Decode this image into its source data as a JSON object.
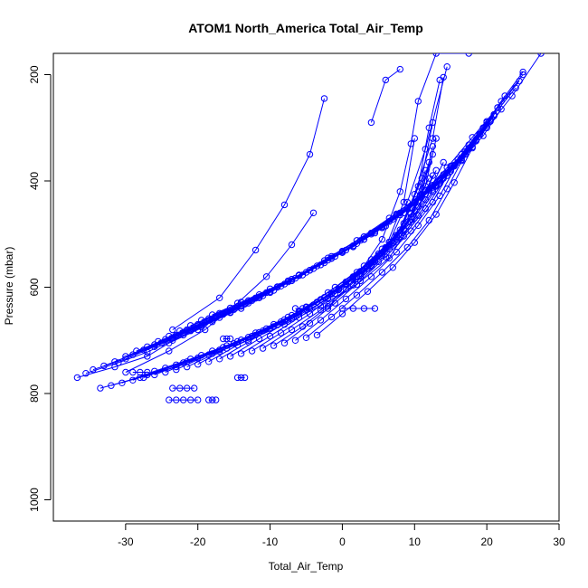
{
  "chart_data": {
    "type": "line",
    "title": "ATOM1 North_America Total_Air_Temp",
    "xlabel": "Total_Air_Temp",
    "ylabel": "Pressure (mbar)",
    "xlim": [
      -40,
      30
    ],
    "ylim": [
      1040,
      160
    ],
    "y_reversed": true,
    "x_ticks": [
      -30,
      -20,
      -10,
      0,
      10,
      20,
      30
    ],
    "y_ticks": [
      200,
      400,
      600,
      800,
      1000
    ],
    "grid": false,
    "legend": "none",
    "series_color": "#0000ff",
    "marker": "open-circle",
    "series": [
      {
        "x": [
          -36.7,
          -31.5,
          -27,
          -24,
          -20,
          -16.5,
          -12,
          -7,
          -2,
          3,
          8,
          13,
          16.5,
          20,
          23.5,
          27.5
        ],
        "y": [
          770,
          750,
          730,
          705,
          680,
          650,
          620,
          585,
          545,
          505,
          460,
          410,
          360,
          300,
          240,
          160
        ]
      },
      {
        "x": [
          -35.5,
          -31,
          -27,
          -23.5,
          -19.5,
          -15.5,
          -11.5,
          -7,
          -2.5,
          2,
          6.5,
          11,
          14.5,
          18,
          21.5,
          25
        ],
        "y": [
          762,
          742,
          722,
          700,
          675,
          648,
          618,
          585,
          550,
          512,
          470,
          425,
          375,
          318,
          262,
          200
        ]
      },
      {
        "x": [
          -34.5,
          -30,
          -26,
          -22,
          -18,
          -14,
          -10,
          -6,
          -1.5,
          3,
          7.5,
          11.5,
          15,
          18.5,
          21,
          24
        ],
        "y": [
          755,
          735,
          712,
          690,
          665,
          640,
          610,
          578,
          542,
          505,
          462,
          418,
          372,
          322,
          275,
          225
        ]
      },
      {
        "x": [
          -33,
          -29,
          -25,
          -21,
          -17,
          -13,
          -9,
          -4.5,
          0,
          4.5,
          9,
          12.5,
          16,
          19,
          21.5,
          24.5
        ],
        "y": [
          748,
          727,
          705,
          682,
          657,
          630,
          600,
          568,
          532,
          495,
          452,
          408,
          360,
          312,
          262,
          212
        ]
      },
      {
        "x": [
          -31.5,
          -27.5,
          -23.5,
          -19.5,
          -15.5,
          -11.5,
          -7.5,
          -3,
          1.5,
          6,
          10,
          13.5,
          16.5,
          19.5,
          22,
          25
        ],
        "y": [
          740,
          718,
          696,
          672,
          647,
          620,
          590,
          558,
          522,
          485,
          442,
          398,
          350,
          300,
          250,
          195
        ]
      },
      {
        "x": [
          -30,
          -26,
          -22,
          -18,
          -14,
          -10,
          -6,
          -1.5,
          3,
          7,
          11,
          14.5,
          17.5,
          20,
          22.5
        ],
        "y": [
          730,
          708,
          686,
          662,
          636,
          608,
          578,
          545,
          510,
          472,
          430,
          385,
          338,
          290,
          240
        ]
      },
      {
        "x": [
          -28.5,
          -24.5,
          -20.5,
          -16.5,
          -12.5,
          -8.5,
          -4.5,
          0,
          4.5,
          8.5,
          12,
          15.5,
          18.5,
          21
        ],
        "y": [
          720,
          698,
          676,
          651,
          625,
          598,
          568,
          535,
          498,
          460,
          418,
          372,
          325,
          275
        ]
      },
      {
        "x": [
          -27,
          -23,
          -19,
          -15,
          -11,
          -7,
          -3,
          1.5,
          5.5,
          9.5,
          13,
          16.5,
          19.5,
          22
        ],
        "y": [
          712,
          690,
          667,
          642,
          616,
          588,
          558,
          524,
          488,
          450,
          408,
          362,
          315,
          265
        ]
      },
      {
        "x": [
          -25.5,
          -21.5,
          -17.5,
          -13.5,
          -9.5,
          -5.5,
          -1.5,
          2.5,
          6.5,
          10.5,
          14,
          17,
          20
        ],
        "y": [
          702,
          680,
          657,
          632,
          606,
          577,
          546,
          512,
          476,
          437,
          395,
          350,
          300
        ]
      },
      {
        "x": [
          -24,
          -20,
          -16,
          -12,
          -8,
          -4,
          0,
          4,
          8,
          11.5,
          15,
          18,
          20.5
        ],
        "y": [
          692,
          670,
          646,
          621,
          594,
          565,
          534,
          500,
          464,
          425,
          382,
          336,
          288
        ]
      },
      {
        "x": [
          -22.5,
          -18.5,
          -14.5,
          -10.5,
          -6.5,
          -2.5,
          1.5,
          5.5,
          9,
          12.5,
          15.5,
          18.5,
          21
        ],
        "y": [
          682,
          659,
          636,
          610,
          583,
          554,
          522,
          488,
          452,
          412,
          370,
          324,
          278
        ]
      },
      {
        "x": [
          -21,
          -17,
          -13,
          -9,
          -5,
          -1,
          3,
          6.5,
          10,
          13.5,
          16.5,
          19
        ],
        "y": [
          672,
          649,
          625,
          599,
          572,
          542,
          510,
          476,
          440,
          400,
          357,
          312
        ]
      },
      {
        "x": [
          -19.5,
          -15.5,
          -11.5,
          -7.5,
          -3.5,
          0.5,
          4,
          7.5,
          11,
          14,
          17,
          19.5
        ],
        "y": [
          662,
          639,
          614,
          588,
          560,
          530,
          498,
          464,
          427,
          388,
          345,
          300
        ]
      },
      {
        "x": [
          -18,
          -14,
          -10,
          -6,
          -2,
          2,
          5.5,
          9,
          12,
          15,
          17.5,
          20
        ],
        "y": [
          652,
          628,
          603,
          577,
          549,
          518,
          486,
          452,
          415,
          375,
          332,
          288
        ]
      },
      {
        "x": [
          -33.5,
          -28,
          -23,
          -18,
          -13,
          -8,
          -3,
          2,
          6.5,
          10,
          12.5
        ],
        "y": [
          790,
          770,
          750,
          725,
          700,
          670,
          635,
          595,
          545,
          470,
          390
        ]
      },
      {
        "x": [
          -32,
          -27,
          -22,
          -17,
          -12,
          -7,
          -2,
          2.5,
          6,
          8.5,
          10
        ],
        "y": [
          785,
          765,
          742,
          718,
          690,
          660,
          622,
          580,
          525,
          440,
          320
        ]
      },
      {
        "x": [
          -30.5,
          -26,
          -21,
          -16,
          -11,
          -6,
          -1.5,
          3,
          6.5,
          9,
          11.5,
          14.5
        ],
        "y": [
          780,
          758,
          735,
          710,
          682,
          650,
          612,
          570,
          515,
          440,
          340,
          185
        ]
      },
      {
        "x": [
          -29,
          -24.5,
          -19.5,
          -14.5,
          -9.5,
          -5,
          -0.5,
          4,
          7.5,
          10,
          12.5,
          14
        ],
        "y": [
          775,
          752,
          728,
          702,
          674,
          642,
          605,
          560,
          505,
          425,
          320,
          205
        ]
      },
      {
        "x": [
          -27.5,
          -23,
          -18,
          -13,
          -8.5,
          -4,
          0.5,
          4.5,
          8,
          10.5,
          12,
          13.5
        ],
        "y": [
          770,
          746,
          720,
          694,
          665,
          633,
          595,
          550,
          492,
          410,
          300,
          210
        ]
      },
      {
        "x": [
          -26,
          -21.5,
          -16.5,
          -12,
          -7.5,
          -3,
          1.5,
          5.5,
          8.5,
          11,
          12.5
        ],
        "y": [
          765,
          740,
          713,
          686,
          656,
          623,
          585,
          540,
          480,
          395,
          290
        ]
      },
      {
        "x": [
          -24.5,
          -20,
          -15,
          -10.5,
          -6,
          -1.5,
          2.5,
          6.5,
          9.5,
          11.5
        ],
        "y": [
          760,
          733,
          706,
          678,
          647,
          613,
          575,
          528,
          468,
          380
        ]
      },
      {
        "x": [
          -23,
          -18.5,
          -14,
          -9.5,
          -5,
          -0.5,
          3.5,
          7,
          10,
          12
        ],
        "y": [
          755,
          727,
          699,
          670,
          638,
          603,
          565,
          517,
          455,
          365
        ]
      },
      {
        "x": [
          -21.5,
          -17,
          -12.5,
          -8,
          -3.5,
          0.5,
          4.5,
          8,
          10.5,
          12.5
        ],
        "y": [
          750,
          721,
          692,
          661,
          628,
          593,
          552,
          505,
          440,
          350
        ]
      },
      {
        "x": [
          -20,
          -16,
          -11.5,
          -7,
          -2.5,
          1.5,
          5,
          8.5,
          11,
          12.5
        ],
        "y": [
          745,
          715,
          685,
          653,
          619,
          582,
          540,
          492,
          425,
          335
        ]
      },
      {
        "x": [
          -18.5,
          -14.5,
          -10,
          -6,
          -2,
          2,
          5.5,
          9,
          11.5,
          13
        ],
        "y": [
          740,
          709,
          678,
          645,
          610,
          572,
          528,
          478,
          410,
          320
        ]
      },
      {
        "x": [
          -17,
          -13,
          -9,
          -5,
          -1,
          3,
          6.5,
          9.5,
          12
        ],
        "y": [
          735,
          703,
          671,
          637,
          600,
          560,
          515,
          462,
          395
        ]
      },
      {
        "x": [
          -15.5,
          -11.5,
          -7.5,
          -3.5,
          0.5,
          4,
          7.5,
          10.5,
          13
        ],
        "y": [
          730,
          697,
          664,
          628,
          590,
          548,
          502,
          448,
          380
        ]
      },
      {
        "x": [
          -14,
          -10,
          -6,
          -2,
          1.5,
          5,
          8.5,
          11.5,
          14
        ],
        "y": [
          725,
          692,
          657,
          620,
          580,
          537,
          490,
          435,
          365
        ]
      },
      {
        "x": [
          -12.5,
          -8.5,
          -4.5,
          -1,
          2.5,
          6,
          9.5,
          12.5
        ],
        "y": [
          720,
          686,
          650,
          612,
          570,
          526,
          478,
          420
        ]
      },
      {
        "x": [
          -11,
          -7,
          -3,
          0.5,
          4,
          7.5,
          10.5,
          13.5
        ],
        "y": [
          715,
          680,
          643,
          604,
          561,
          515,
          465,
          405
        ]
      },
      {
        "x": [
          -9.5,
          -5.5,
          -2,
          1.5,
          5,
          8.5,
          11.5,
          14.5
        ],
        "y": [
          710,
          674,
          636,
          596,
          552,
          504,
          452,
          390
        ]
      },
      {
        "x": [
          -8,
          -4.5,
          -1,
          2.5,
          6,
          9.5,
          12.5,
          15
        ],
        "y": [
          705,
          668,
          630,
          588,
          543,
          494,
          440,
          378
        ]
      },
      {
        "x": [
          -6.5,
          -3,
          0.5,
          4,
          7.5,
          10.5,
          13.5,
          16
        ],
        "y": [
          700,
          662,
          622,
          580,
          534,
          484,
          428,
          365
        ]
      },
      {
        "x": [
          -5,
          -1.5,
          2,
          5.5,
          9,
          12,
          14.5,
          17
        ],
        "y": [
          695,
          656,
          615,
          572,
          525,
          474,
          415,
          350
        ]
      },
      {
        "x": [
          -3.5,
          0,
          3.5,
          7,
          10,
          13,
          15.5,
          18
        ],
        "y": [
          690,
          650,
          608,
          563,
          516,
          463,
          403,
          338
        ]
      },
      {
        "x": [
          -23.5,
          -17,
          -12,
          -8,
          -4.5,
          -2.5
        ],
        "y": [
          680,
          620,
          530,
          445,
          350,
          245
        ]
      },
      {
        "x": [
          -30,
          -24,
          -19,
          -14.5,
          -10.5,
          -7,
          -4
        ],
        "y": [
          760,
          720,
          680,
          630,
          580,
          520,
          460
        ]
      },
      {
        "x": [
          -2,
          2,
          5.5,
          8,
          9.5,
          10.5,
          13,
          17.5
        ],
        "y": [
          640,
          580,
          510,
          420,
          330,
          250,
          160,
          160
        ]
      },
      {
        "x": [
          4,
          6,
          8
        ],
        "y": [
          290,
          210,
          190
        ]
      },
      {
        "x": [
          0,
          1.5,
          3,
          4.5
        ],
        "y": [
          640,
          640,
          640,
          640
        ]
      },
      {
        "x": [
          -23.5,
          -22.5,
          -21.5,
          -20.5
        ],
        "y": [
          790,
          790,
          790,
          790
        ]
      },
      {
        "x": [
          -24,
          -23,
          -22,
          -21,
          -20
        ],
        "y": [
          812,
          812,
          812,
          812,
          812
        ]
      },
      {
        "x": [
          -14.5,
          -14,
          -13.5
        ],
        "y": [
          770,
          770,
          770
        ]
      },
      {
        "x": [
          -6.5,
          -5.5,
          -4.5
        ],
        "y": [
          640,
          640,
          640
        ]
      },
      {
        "x": [
          -16.5,
          -16,
          -15.5
        ],
        "y": [
          697,
          697,
          697
        ]
      },
      {
        "x": [
          -29,
          -28,
          -27
        ],
        "y": [
          760,
          760,
          760
        ]
      },
      {
        "x": [
          -18.5,
          -18,
          -17.5
        ],
        "y": [
          812,
          812,
          812
        ]
      }
    ]
  }
}
